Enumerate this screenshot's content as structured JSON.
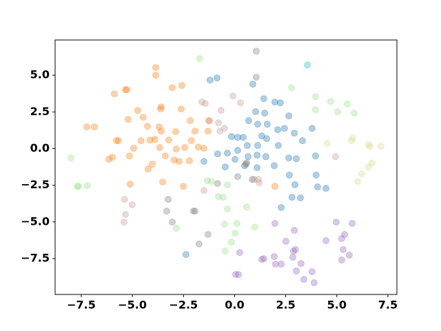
{
  "chart_data": {
    "type": "scatter",
    "xlim": [
      -8.78,
      7.94
    ],
    "ylim": [
      -9.94,
      7.4
    ],
    "xticks": [
      {
        "value": -7.5,
        "label": "−7.5"
      },
      {
        "value": -5,
        "label": "−5.0"
      },
      {
        "value": -2.5,
        "label": "−2.5"
      },
      {
        "value": 0,
        "label": "0.0"
      },
      2.5,
      {
        "value": 5,
        "label": "5.0"
      },
      7.5
    ],
    "yticks": [
      {
        "value": -7.5,
        "label": "−7.5"
      },
      {
        "value": -5,
        "label": "−5.0"
      },
      {
        "value": -2.5,
        "label": "−2.5"
      },
      {
        "value": 0,
        "label": "0.0"
      },
      2.5,
      {
        "value": 5,
        "label": "5.0"
      }
    ],
    "alpha": 0.35,
    "series": [
      {
        "color": "#1f77b4",
        "x": [
          -1.2,
          -0.86,
          0.89,
          1.43,
          1.97,
          1.03,
          1.47,
          2.24,
          0.69,
          1.13,
          1.6,
          2.11,
          2.65,
          2.92,
          3.32,
          3.79,
          3.96,
          2.44,
          1.33,
          1.57,
          0.42,
          -0.15,
          0.15,
          0.62,
          1.13,
          2.14,
          0.15,
          -0.35,
          -0.83,
          0.02,
          1.1,
          0.66,
          1.53,
          1.94,
          2.65,
          3.02,
          -0.46,
          0.49,
          1.1,
          2.68,
          2.95,
          3.99,
          4.06,
          4.47,
          2.28,
          2.81,
          3.22,
          -1.5,
          -2.38
        ],
        "y": [
          4.67,
          4.81,
          4.39,
          3.4,
          3.17,
          2.51,
          2.42,
          3.12,
          1.9,
          1.66,
          1.66,
          1.29,
          2.23,
          1.05,
          0.54,
          1.38,
          -0.5,
          1.38,
          0.86,
          0.68,
          0.77,
          0.82,
          0.77,
          0.21,
          0.21,
          0.21,
          -0.12,
          -0.31,
          -0.36,
          -0.73,
          -0.45,
          -0.55,
          -0.55,
          -1.16,
          -0.64,
          -0.69,
          -1.25,
          -1.16,
          -1.3,
          -1.81,
          -2.46,
          -1.81,
          -2.61,
          -2.71,
          -4.02,
          -3.32,
          -3.36,
          -0.87,
          -7.22
        ]
      },
      {
        "color": "#ff7f0e",
        "x": [
          -3.86,
          -3.86,
          -5.34,
          -5.27,
          -2.58,
          -3.05,
          -3.59,
          -3.62,
          -4.74,
          -4.47,
          -2.61,
          -5.88,
          -7.23,
          -6.86,
          -5.21,
          -4.26,
          -3.69,
          -3.59,
          -2.88,
          -2.17,
          -1.94,
          -1.26,
          -1.3,
          -5.78,
          -5.68,
          -4.57,
          -4.13,
          -4.94,
          -3.89,
          -3.22,
          -3.66,
          -2.85,
          -2.44,
          -2.11,
          -1.77,
          -1.5,
          -6.15,
          -5.98,
          -5.14,
          -3.39,
          -2.95,
          -2.71,
          -2.21,
          -4.03,
          -3.52,
          -2.51,
          -5.11,
          -4.23,
          1.97
        ],
        "y": [
          5.52,
          5.0,
          4.01,
          4.01,
          4.3,
          4.15,
          2.84,
          2.7,
          2.6,
          2.13,
          2.7,
          3.73,
          1.48,
          1.48,
          1.99,
          1.52,
          1.48,
          1.19,
          1.15,
          1.9,
          1.19,
          1.9,
          1.19,
          0.54,
          0.54,
          0.54,
          0.58,
          0.02,
          0.63,
          0.58,
          0.07,
          -0.03,
          0.07,
          0.54,
          0.11,
          0.02,
          -0.73,
          -0.59,
          -0.5,
          -0.5,
          -0.78,
          -0.87,
          -0.83,
          -1.06,
          -2.28,
          -2.57,
          -2.42,
          -1.39,
          -2.57
        ]
      },
      {
        "color": "#98df8a",
        "x": [
          -1.7,
          2.78,
          3.96,
          4.7,
          3.96,
          5.51,
          5.04,
          5.85,
          -8.0,
          -7.7,
          -7.63,
          -7.2,
          -2.85,
          -1.33,
          -1.13,
          -0.79,
          -0.56,
          -0.35,
          -0.35,
          -0.49,
          0.12,
          0.59,
          0.99,
          0.02,
          -0.15,
          -0.46
        ],
        "y": [
          6.13,
          4.15,
          3.54,
          3.21,
          2.65,
          3.03,
          2.51,
          2.42,
          -0.64,
          -2.57,
          -2.57,
          -2.52,
          -5.43,
          -2.19,
          -2.24,
          -3.27,
          -3.32,
          -2.47,
          -4.12,
          -5.15,
          -5.1,
          -3.98,
          -5.34,
          -5.76,
          -6.37,
          -6.98
        ]
      },
      {
        "color": "#dbdb8d",
        "x": [
          4.53,
          5.71,
          5.78,
          6.62,
          7.16,
          6.72,
          6.55,
          6.22,
          6.02,
          6.55
        ],
        "y": [
          0.35,
          0.54,
          0.72,
          0.15,
          0.15,
          -0.97,
          -1.25,
          -1.72,
          -2.24,
          0.29
        ]
      },
      {
        "color": "#9467bd",
        "x": [
          1.97,
          2.92,
          2.51,
          1.94,
          2.0,
          2.28,
          2.85,
          2.98,
          2.88,
          3.25,
          3.02,
          3.39,
          3.79,
          3.89,
          4.47,
          4.97,
          5.24,
          5.31,
          5.24,
          5.38,
          5.75,
          5.61,
          0.19,
          0.05,
          0.25,
          1.33,
          1.43
        ],
        "y": [
          -5.1,
          -5.57,
          -6.32,
          -7.36,
          -7.87,
          -7.87,
          -7.4,
          -6.88,
          -6.98,
          -7.83,
          -8.34,
          -8.91,
          -8.39,
          -9.14,
          -6.27,
          -5.01,
          -6.13,
          -6.88,
          -7.59,
          -5.85,
          -5.1,
          -7.26,
          -8.58,
          -8.58,
          -7.08,
          -7.55,
          -7.5
        ]
      },
      {
        "color": "#c49c94",
        "x": [
          -1.6,
          -1.43,
          -0.66,
          -0.08,
          0.29,
          -1.23,
          -0.79,
          -0.72,
          -0.49,
          0.96,
          1.2,
          -5.38,
          -5.01,
          -5.34,
          -5.41,
          -1.5,
          1.16,
          4.94
        ],
        "y": [
          3.17,
          3.07,
          2.6,
          3.59,
          3.12,
          1.9,
          1.76,
          1.19,
          1.38,
          -2.1,
          -2.33,
          -3.46,
          -3.83,
          -4.49,
          -5.01,
          -2.85,
          -2.1,
          -0.55
        ]
      },
      {
        "color": "#7f7f7f",
        "x": [
          1.06,
          1.06,
          -3.25,
          -3.32,
          -3.05,
          -1.94,
          -2.01,
          -1.74,
          -1.3,
          0.15,
          0.86,
          0.59,
          0.56,
          -0.83
        ],
        "y": [
          6.64,
          4.86,
          -3.46,
          -4.26,
          -5.01,
          -4.26,
          -4.26,
          -6.5,
          -5.85,
          -1.91,
          -2.1,
          -0.97,
          -1.06,
          -2.38
        ]
      },
      {
        "color": "#17becf",
        "x": [
          3.56
        ],
        "y": [
          5.7
        ]
      }
    ]
  }
}
